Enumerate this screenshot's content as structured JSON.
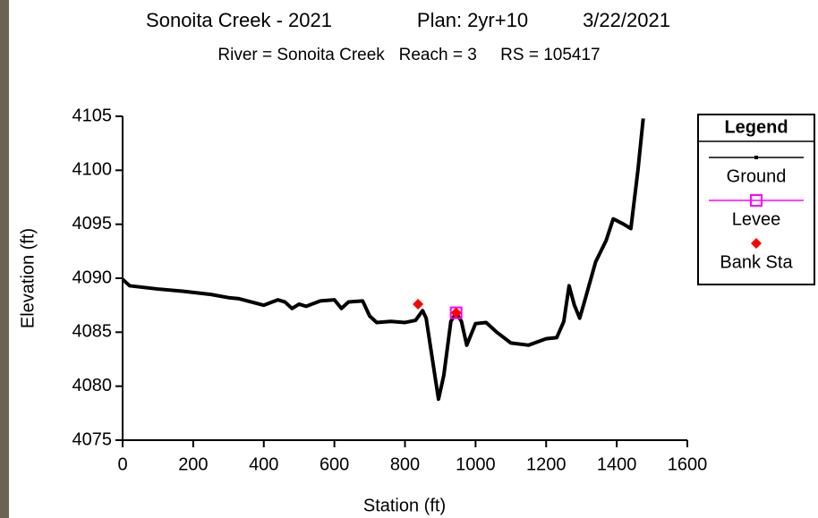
{
  "chart_data": {
    "type": "line",
    "title": [
      "Sonoita Creek - 2021",
      "Plan: 2yr+10",
      "3/22/2021"
    ],
    "subtitle": "River = Sonoita Creek   Reach = 3     RS = 105417",
    "x_label": "Station (ft)",
    "y_label": "Elevation (ft)",
    "legend_title": "Legend",
    "legend_position": "right",
    "xlim": [
      0,
      1600
    ],
    "ylim": [
      4075,
      4105
    ],
    "xticks": [
      0,
      200,
      400,
      600,
      800,
      1000,
      1200,
      1400,
      1600
    ],
    "yticks": [
      4075,
      4080,
      4085,
      4090,
      4095,
      4100,
      4105
    ],
    "series": [
      {
        "name": "Ground",
        "color": "#000000",
        "x": [
          0,
          20,
          100,
          170,
          250,
          300,
          330,
          400,
          440,
          460,
          480,
          500,
          520,
          560,
          600,
          620,
          640,
          680,
          700,
          720,
          760,
          800,
          830,
          850,
          860,
          880,
          895,
          910,
          930,
          945,
          960,
          975,
          1000,
          1030,
          1060,
          1100,
          1150,
          1200,
          1230,
          1250,
          1265,
          1280,
          1295,
          1310,
          1340,
          1370,
          1390,
          1420,
          1440,
          1460,
          1475
        ],
        "values": [
          4089.9,
          4089.3,
          4089.0,
          4088.8,
          4088.5,
          4088.2,
          4088.1,
          4087.5,
          4088.0,
          4087.8,
          4087.2,
          4087.6,
          4087.4,
          4087.9,
          4088.0,
          4087.2,
          4087.8,
          4087.9,
          4086.5,
          4085.9,
          4086.0,
          4085.9,
          4086.1,
          4087.0,
          4086.3,
          4082.0,
          4078.8,
          4081.0,
          4086.0,
          4086.8,
          4086.0,
          4083.8,
          4085.8,
          4085.9,
          4085.0,
          4084.0,
          4083.8,
          4084.4,
          4084.5,
          4086.0,
          4089.3,
          4087.5,
          4086.3,
          4088.0,
          4091.5,
          4093.5,
          4095.5,
          4095.0,
          4094.6,
          4100.0,
          4104.8
        ]
      },
      {
        "name": "Levee",
        "color": "#ff00ff",
        "x": [
          945
        ],
        "values": [
          4086.8
        ]
      },
      {
        "name": "Bank Sta",
        "color": "#ff0000",
        "x": [
          837,
          945
        ],
        "values": [
          4087.6,
          4086.8
        ]
      }
    ]
  }
}
